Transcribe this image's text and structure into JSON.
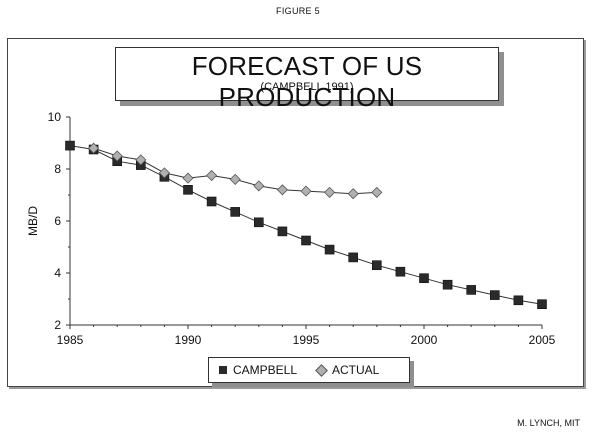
{
  "figure_label": "FIGURE 5",
  "author": "M. LYNCH, MIT",
  "colors": {
    "campbell": "#2a2a2a",
    "actual": "#b0b0b0",
    "line": "#333333"
  },
  "chart_data": {
    "type": "line",
    "title": "FORECAST OF US PRODUCTION",
    "subtitle": "(CAMPBELL 1991)",
    "xlabel": "",
    "ylabel": "MB/D",
    "xlim": [
      1985,
      2005
    ],
    "ylim": [
      2,
      10
    ],
    "x_ticks": [
      1985,
      1990,
      1995,
      2000,
      2005
    ],
    "y_ticks": [
      2,
      4,
      6,
      8,
      10
    ],
    "grid": false,
    "legend_position": "bottom",
    "series": [
      {
        "name": "CAMPBELL",
        "marker": "square",
        "x": [
          1985,
          1986,
          1987,
          1988,
          1989,
          1990,
          1991,
          1992,
          1993,
          1994,
          1995,
          1996,
          1997,
          1998,
          1999,
          2000,
          2001,
          2002,
          2003,
          2004,
          2005
        ],
        "values": [
          8.9,
          8.75,
          8.3,
          8.15,
          7.7,
          7.2,
          6.75,
          6.35,
          5.95,
          5.6,
          5.25,
          4.9,
          4.6,
          4.3,
          4.05,
          3.8,
          3.55,
          3.35,
          3.15,
          2.95,
          2.8
        ]
      },
      {
        "name": "ACTUAL",
        "marker": "diamond",
        "x": [
          1986,
          1987,
          1988,
          1989,
          1990,
          1991,
          1992,
          1993,
          1994,
          1995,
          1996,
          1997,
          1998
        ],
        "values": [
          8.8,
          8.5,
          8.35,
          7.85,
          7.65,
          7.75,
          7.6,
          7.35,
          7.2,
          7.15,
          7.1,
          7.05,
          7.1
        ]
      }
    ]
  }
}
